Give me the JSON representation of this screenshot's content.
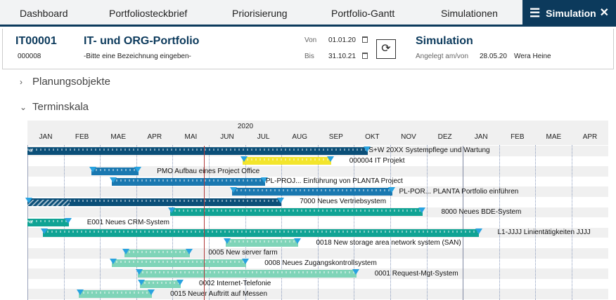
{
  "tabs": [
    {
      "label": "Dashboard"
    },
    {
      "label": "Portfoliosteckbrief"
    },
    {
      "label": "Priorisierung"
    },
    {
      "label": "Portfolio-Gantt"
    },
    {
      "label": "Simulationen"
    },
    {
      "label": "Simulation",
      "active": true
    }
  ],
  "active_tab_icons": {
    "menu": "hamburger-icon",
    "close": "close-icon"
  },
  "header": {
    "id": "IT00001",
    "sub_id": "000008",
    "title": "IT- und ORG-Portfolio",
    "description": "-Bitte eine Bezeichnung eingeben-",
    "von_label": "Von",
    "von_value": "01.01.20",
    "bis_label": "Bis",
    "bis_value": "31.10.21",
    "sim_title": "Simulation",
    "created_label": "Angelegt am/von",
    "created_date": "28.05.20",
    "created_by": "Wera Heine"
  },
  "sections": {
    "planungsobjekte": "Planungsobjekte",
    "terminskala": "Terminskala"
  },
  "gantt": {
    "year": "2020",
    "months": [
      "JAN",
      "FEB",
      "MAE",
      "APR",
      "MAI",
      "JUN",
      "JUL",
      "AUG",
      "SEP",
      "OKT",
      "NOV",
      "DEZ",
      "JAN",
      "FEB",
      "MAE",
      "APR"
    ],
    "range_start": "2020-01-01",
    "today": "2020-05-28",
    "year_boundary": "2021-01-01",
    "colors": {
      "navy": "#0b4f78",
      "blue": "#1a78b0",
      "yellow": "#f3e52c",
      "teal": "#10a394",
      "light": "#7fd4b8",
      "today": "#b03a3a"
    },
    "bars": [
      {
        "label": "S+W 20XX Systempflege und Wartung",
        "start": "2020-01-01",
        "end": "2020-10-13",
        "color": "navy",
        "continues_left": true
      },
      {
        "label": "000004 IT Projekt",
        "start": "2020-06-29",
        "end": "2020-09-12",
        "color": "yellow"
      },
      {
        "label": "PMO  Aufbau eines Project Office",
        "start": "2020-02-23",
        "end": "2020-04-03",
        "color": "blue"
      },
      {
        "label": "PL-PROJ...  Einführung von PLANTA Project",
        "start": "2020-03-11",
        "end": "2020-07-18",
        "color": "blue"
      },
      {
        "label": "PL-POR...  PLANTA Portfolio einführen",
        "start": "2020-06-20",
        "end": "2020-11-03",
        "color": "blue"
      },
      {
        "label": "7000 Neues Vertriebsystem",
        "start": "2020-01-01",
        "end": "2020-08-01",
        "color": "navy",
        "hatched_until": "2020-02-06"
      },
      {
        "label": "8000 Neues BDE-System",
        "start": "2020-04-29",
        "end": "2020-11-28",
        "color": "teal"
      },
      {
        "label": "E001 Neues CRM-System",
        "start": "2020-01-01",
        "end": "2020-02-05",
        "color": "teal",
        "continues_left": true
      },
      {
        "label": "L1-JJJJ Linientätigkeiten JJJJ",
        "start": "2020-01-14",
        "end": "2021-01-15",
        "color": "teal"
      },
      {
        "label": "0018 New storage area network system (SAN)",
        "start": "2020-06-15",
        "end": "2020-08-15",
        "color": "light"
      },
      {
        "label": "0005 New server farm",
        "start": "2020-03-22",
        "end": "2020-05-16",
        "color": "light"
      },
      {
        "label": "0008 Neues Zugangskontrollsystem",
        "start": "2020-03-11",
        "end": "2020-07-02",
        "color": "light"
      },
      {
        "label": "0001 Request-Mgt-System",
        "start": "2020-04-02",
        "end": "2020-10-03",
        "color": "light"
      },
      {
        "label": "0002 Internet-Telefonie",
        "start": "2020-04-04",
        "end": "2020-05-08",
        "color": "light"
      },
      {
        "label": "0015 Neuer Auftritt auf Messen",
        "start": "2020-02-13",
        "end": "2020-04-14",
        "color": "light"
      }
    ]
  }
}
